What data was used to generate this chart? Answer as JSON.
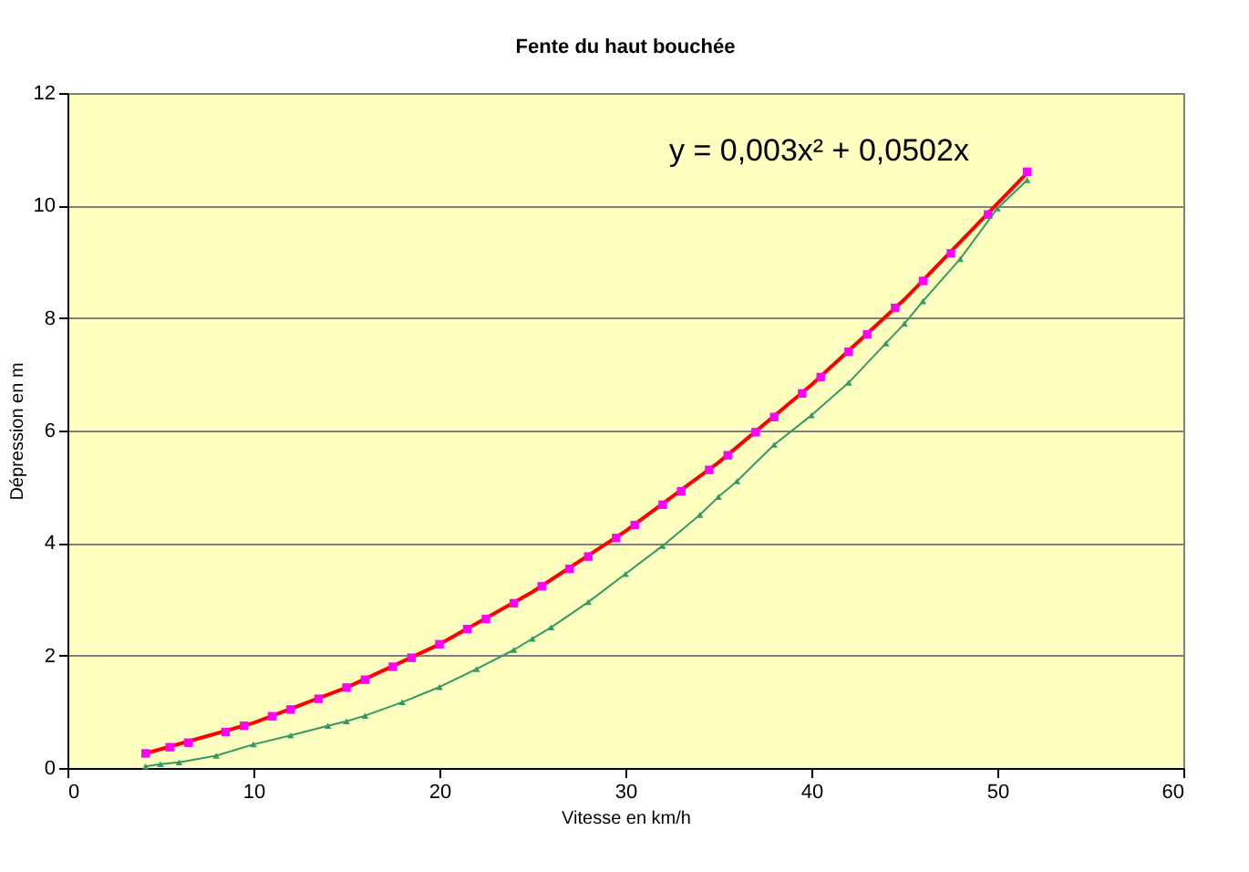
{
  "chart_data": {
    "type": "scatter",
    "title": "Fente du haut bouchée",
    "xlabel": "Vitesse en km/h",
    "ylabel": "Dépression en m",
    "xlim": [
      0,
      60
    ],
    "xticks": [
      0,
      10,
      20,
      30,
      40,
      50,
      60
    ],
    "ylim": [
      0,
      12
    ],
    "yticks": [
      0,
      2,
      4,
      6,
      8,
      10,
      12
    ],
    "grid": "y",
    "annotations": [
      "y = 0,003x² + 0,0502x"
    ],
    "series": [
      {
        "type": "line",
        "color": "#ff0000",
        "marker": "none",
        "line_style": "solid",
        "x": [
          4.2,
          10,
          15,
          20,
          25,
          30,
          35,
          40,
          45,
          51.6
        ],
        "values": [
          0.26,
          0.8,
          1.43,
          2.2,
          3.13,
          4.21,
          5.43,
          6.81,
          8.33,
          10.58
        ]
      },
      {
        "type": "scatter",
        "color": "#ff00ff",
        "marker": "square",
        "x": [
          4.2,
          5.5,
          6.5,
          8.5,
          9.5,
          11,
          12,
          13.5,
          15,
          16,
          17.5,
          18.5,
          20,
          21.5,
          22.5,
          24,
          25.5,
          27,
          28,
          29.5,
          30.5,
          32,
          33,
          34.5,
          35.5,
          37,
          38,
          39.5,
          40.5,
          42,
          43,
          44.5,
          46,
          47.5,
          49.5,
          51.6
        ],
        "values": [
          0.26,
          0.37,
          0.45,
          0.64,
          0.75,
          0.92,
          1.04,
          1.23,
          1.43,
          1.57,
          1.8,
          1.96,
          2.2,
          2.47,
          2.65,
          2.93,
          3.23,
          3.54,
          3.76,
          4.09,
          4.32,
          4.68,
          4.92,
          5.3,
          5.56,
          5.97,
          6.24,
          6.66,
          6.95,
          7.4,
          7.71,
          8.18,
          8.66,
          9.15,
          9.84,
          10.6
        ]
      },
      {
        "type": "line",
        "color": "#339966",
        "marker": "triangle",
        "line_style": "solid",
        "x": [
          4.2,
          5,
          6,
          8,
          10,
          12,
          14,
          15,
          16,
          18,
          20,
          22,
          24,
          25,
          26,
          28,
          30,
          32,
          34,
          35,
          36,
          38,
          40,
          42,
          44,
          45,
          46,
          48,
          50,
          51.6
        ],
        "values": [
          0.03,
          0.07,
          0.1,
          0.22,
          0.42,
          0.58,
          0.75,
          0.83,
          0.93,
          1.17,
          1.44,
          1.76,
          2.1,
          2.3,
          2.5,
          2.95,
          3.45,
          3.95,
          4.5,
          4.82,
          5.1,
          5.75,
          6.27,
          6.85,
          7.55,
          7.9,
          8.3,
          9.05,
          9.95,
          10.45
        ]
      }
    ]
  }
}
